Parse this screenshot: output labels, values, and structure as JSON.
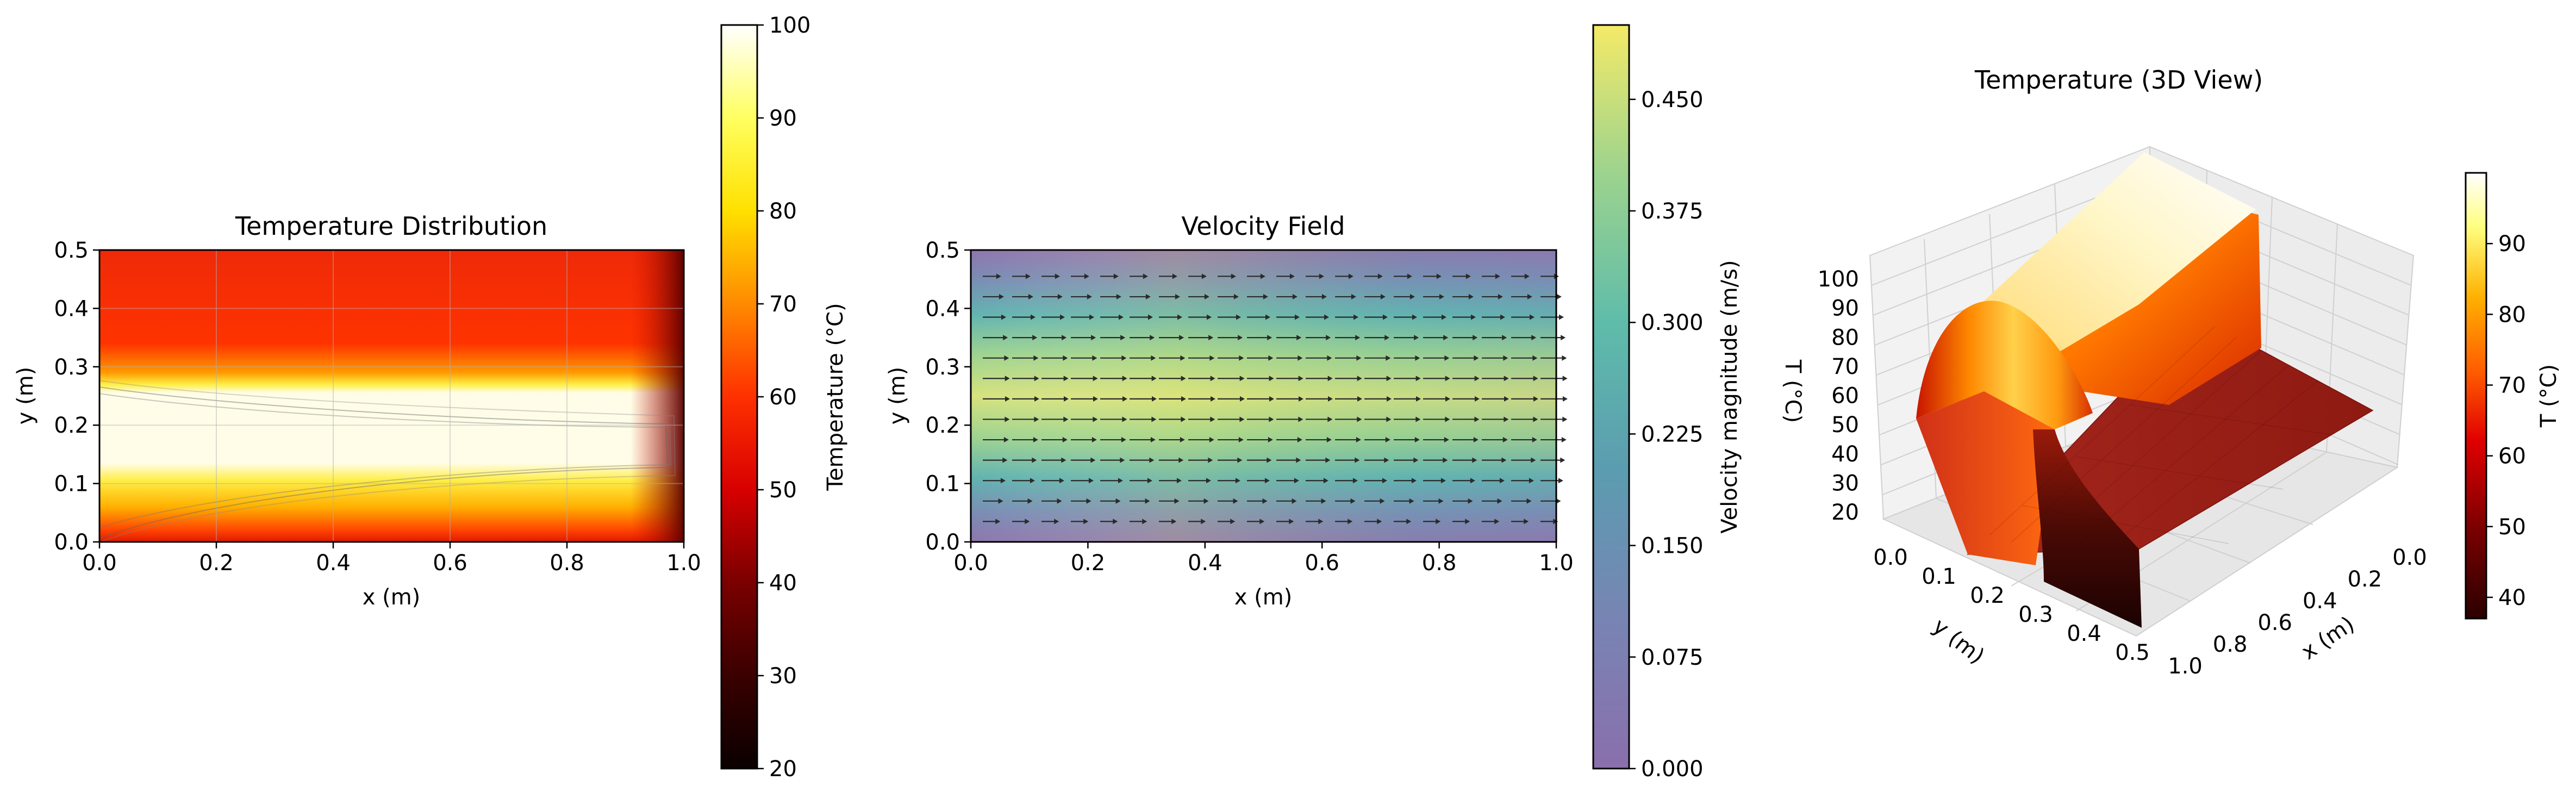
{
  "chart_data": [
    {
      "type": "heatmap",
      "title": "Temperature Distribution",
      "xlabel": "x (m)",
      "ylabel": "y (m)",
      "xlim": [
        0,
        1
      ],
      "ylim": [
        0,
        0.5
      ],
      "x_ticks": [
        "0.0",
        "0.2",
        "0.4",
        "0.6",
        "0.8",
        "1.0"
      ],
      "y_ticks": [
        "0.0",
        "0.1",
        "0.2",
        "0.3",
        "0.4",
        "0.5"
      ],
      "grid": true,
      "colormap": "hot",
      "colorbar": {
        "label": "Temperature (°C)",
        "range": [
          20,
          100
        ],
        "ticks": [
          "20",
          "30",
          "40",
          "50",
          "60",
          "70",
          "80",
          "90",
          "100"
        ]
      },
      "field": {
        "inlet_band_y": [
          0.12,
          0.25
        ],
        "inlet_temperature": 100,
        "ambient_temperature": 50,
        "right_wall_temperature": 20
      }
    },
    {
      "type": "heatmap",
      "title": "Velocity Field",
      "xlabel": "x (m)",
      "ylabel": "y (m)",
      "xlim": [
        0,
        1
      ],
      "ylim": [
        0,
        0.5
      ],
      "x_ticks": [
        "0.0",
        "0.2",
        "0.4",
        "0.6",
        "0.8",
        "1.0"
      ],
      "y_ticks": [
        "0.0",
        "0.1",
        "0.2",
        "0.3",
        "0.4",
        "0.5"
      ],
      "colormap": "viridis",
      "colorbar": {
        "label": "Velocity magnitude (m/s)",
        "range": [
          0,
          0.5
        ],
        "ticks": [
          "0.000",
          "0.075",
          "0.150",
          "0.225",
          "0.300",
          "0.375",
          "0.450"
        ]
      },
      "field": {
        "profile": "parabolic",
        "max_velocity": 0.5,
        "direction": "+x",
        "arrow_rows_y": [
          0.035,
          0.07,
          0.105,
          0.14,
          0.175,
          0.21,
          0.245,
          0.28,
          0.315,
          0.35,
          0.385,
          0.42,
          0.455
        ]
      }
    },
    {
      "type": "surface",
      "title": "Temperature (3D View)",
      "xlabel": "x (m)",
      "ylabel": "y (m)",
      "zlabel": "T (°C)",
      "x_ticks": [
        "0.0",
        "0.2",
        "0.4",
        "0.6",
        "0.8",
        "1.0"
      ],
      "y_ticks": [
        "0.0",
        "0.1",
        "0.2",
        "0.3",
        "0.4",
        "0.5"
      ],
      "z_ticks": [
        "20",
        "30",
        "40",
        "50",
        "60",
        "70",
        "80",
        "90",
        "100"
      ],
      "colormap": "hot",
      "colorbar": {
        "label": "T (°C)",
        "range": [
          37,
          100
        ],
        "ticks": [
          "40",
          "50",
          "60",
          "70",
          "80",
          "90"
        ]
      }
    }
  ]
}
